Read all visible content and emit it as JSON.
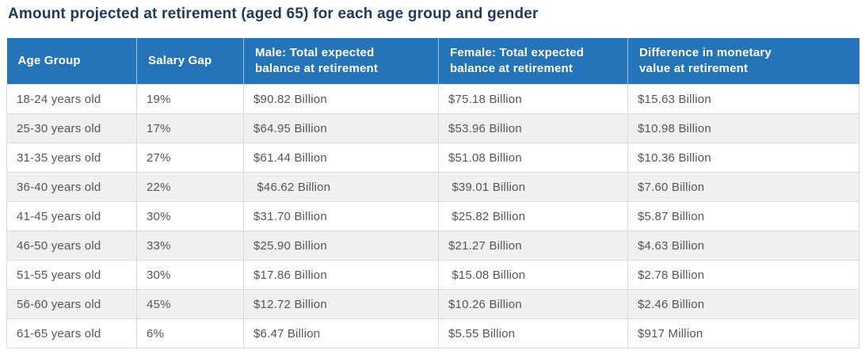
{
  "title": "Amount projected at retirement (aged 65) for each age group and gender",
  "colors": {
    "header_bg": "#2573B8",
    "header_text": "#FFFFFF",
    "title_text": "#21395F",
    "body_text": "#54555A",
    "row_alt_bg": "#F0F0F0",
    "border": "#DBDBDB"
  },
  "chart_data": {
    "type": "table",
    "title": "Amount projected at retirement (aged 65) for each age group and gender",
    "columns": [
      "Age Group",
      "Salary Gap",
      "Male: Total expected\nbalance at retirement",
      "Female: Total expected\nbalance at retirement",
      "Difference in monetary\nvalue at retirement"
    ],
    "rows": [
      [
        "18-24 years old",
        "19%",
        "$90.82 Billion",
        "$75.18 Billion",
        "$15.63 Billion"
      ],
      [
        "25-30 years old",
        "17%",
        "$64.95 Billion",
        "$53.96 Billion",
        "$10.98 Billion"
      ],
      [
        "31-35 years old",
        "27%",
        "$61.44 Billion",
        "$51.08 Billion",
        "$10.36 Billion"
      ],
      [
        "36-40 years old",
        "22%",
        " $46.62 Billion",
        " $39.01 Billion",
        "$7.60 Billion"
      ],
      [
        "41-45 years old",
        "30%",
        "$31.70 Billion",
        " $25.82 Billion",
        "$5.87 Billion"
      ],
      [
        "46-50 years old",
        "33%",
        "$25.90 Billion",
        "$21.27 Billion",
        "$4.63 Billion"
      ],
      [
        "51-55 years old",
        "30%",
        "$17.86 Billion",
        " $15.08 Billion",
        "$2.78 Billion"
      ],
      [
        "56-60 years old",
        "45%",
        "$12.72 Billion",
        "$10.26 Billion",
        "$2.46 Billion"
      ],
      [
        "61-65 years old",
        "6%",
        "$6.47 Billion",
        "$5.55 Billion",
        "$917 Million"
      ]
    ]
  }
}
